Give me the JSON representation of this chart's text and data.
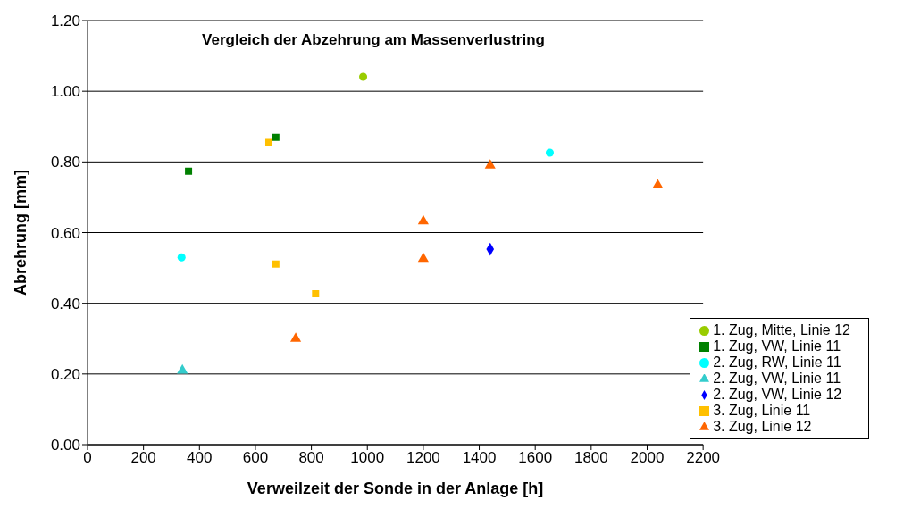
{
  "chart_data": {
    "type": "scatter",
    "title": "Vergleich der Abzehrung am Massenverlustring",
    "xlabel": "Verweilzeit der Sonde in der Anlage [h]",
    "ylabel": "Abrehrung [mm]",
    "xlim": [
      0,
      2200
    ],
    "xticks": [
      0,
      200,
      400,
      600,
      800,
      1000,
      1200,
      1400,
      1600,
      1800,
      2000,
      2200
    ],
    "ylim": [
      0,
      1.2
    ],
    "yticks": [
      {
        "value": 0,
        "label": "0.00"
      },
      {
        "value": 0.2,
        "label": "0.20"
      },
      {
        "value": 0.4,
        "label": "0.40"
      },
      {
        "value": 0.6,
        "label": "0.60"
      },
      {
        "value": 0.8,
        "label": "0.80"
      },
      {
        "value": 1,
        "label": "1.00"
      },
      {
        "value": 1.2,
        "label": "1.20"
      }
    ],
    "grid": "y",
    "legend": "bottom right",
    "series": [
      {
        "name": "3. Zug, Linie 11",
        "color": "#ffc000",
        "marker": "square",
        "x": [
          648,
          673,
          815
        ],
        "values": [
          0.855,
          0.511,
          0.427
        ]
      },
      {
        "name": "3. Zug, Linie 12",
        "color": "#ff6600",
        "marker": "triangle",
        "x": [
          744,
          1200,
          1200,
          1439,
          2038
        ],
        "values": [
          0.3,
          0.632,
          0.526,
          0.79,
          0.734
        ]
      },
      {
        "name": "2. Zug, VW, Linie 11",
        "color": "#33cccc",
        "marker": "triangle",
        "x": [
          339
        ],
        "values": [
          0.21
        ]
      },
      {
        "name": "2. Zug, RW, Linie 11",
        "color": "#00ffff",
        "marker": "circle",
        "x": [
          336,
          1652
        ],
        "values": [
          0.53,
          0.826
        ]
      },
      {
        "name": "2. Zug, VW, Linie 12",
        "color": "#0000ff",
        "marker": "diamond",
        "x": [
          1439
        ],
        "values": [
          0.553
        ]
      },
      {
        "name": "1. Zug, VW, Linie 11",
        "color": "#008000",
        "marker": "square",
        "x": [
          361,
          673
        ],
        "values": [
          0.774,
          0.87
        ]
      },
      {
        "name": "1. Zug, Mitte, Linie 12",
        "color": "#99cc00",
        "marker": "circle",
        "x": [
          985
        ],
        "values": [
          1.041
        ]
      }
    ]
  }
}
